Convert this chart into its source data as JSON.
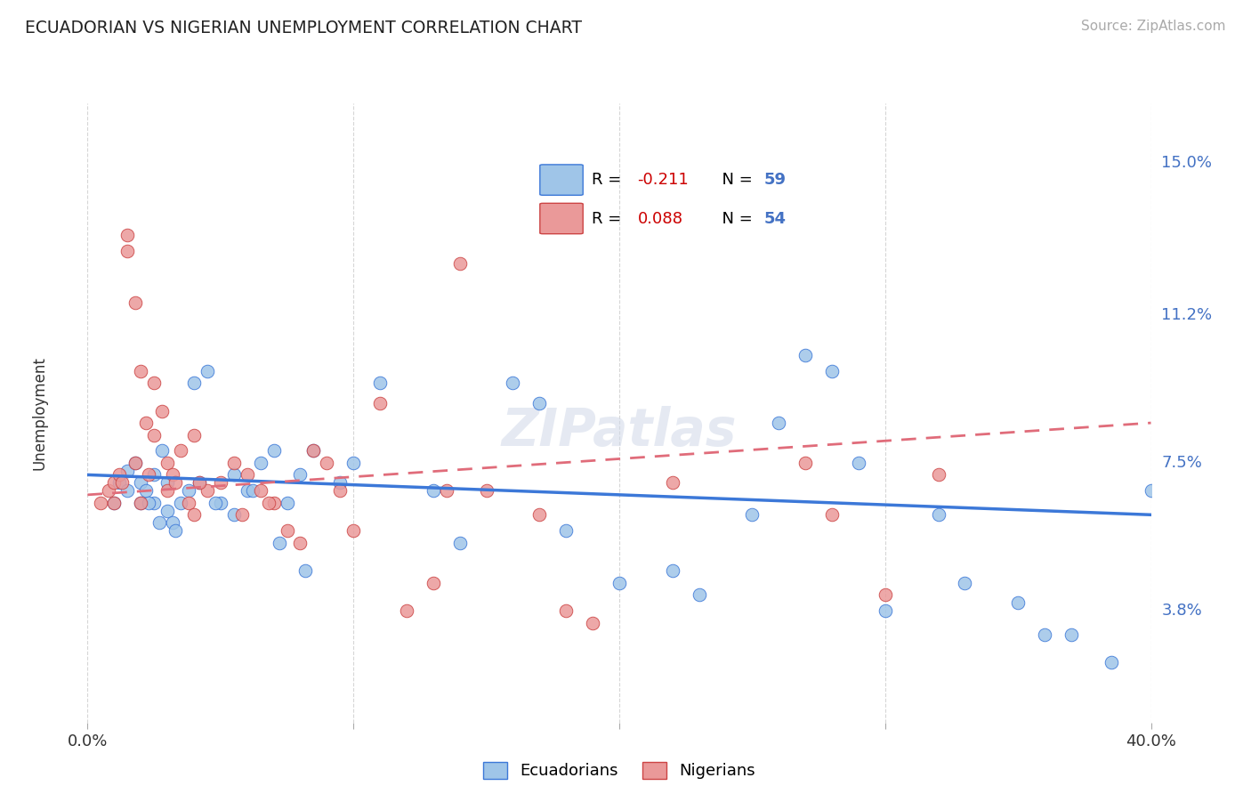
{
  "title": "ECUADORIAN VS NIGERIAN UNEMPLOYMENT CORRELATION CHART",
  "source": "Source: ZipAtlas.com",
  "ylabel": "Unemployment",
  "yticks": [
    3.8,
    7.5,
    11.2,
    15.0
  ],
  "ytick_labels": [
    "3.8%",
    "7.5%",
    "11.2%",
    "15.0%"
  ],
  "xmin": 0.0,
  "xmax": 40.0,
  "ymin": 1.0,
  "ymax": 16.5,
  "blue_color": "#9fc5e8",
  "pink_color": "#ea9999",
  "blue_line_color": "#3c78d8",
  "pink_line_color": "#e06c7a",
  "blue_line_y0": 7.2,
  "blue_line_y1": 6.2,
  "pink_line_y0": 6.7,
  "pink_line_y1": 8.5,
  "ecuadorians_label": "Ecuadorians",
  "nigerians_label": "Nigerians",
  "background_color": "#ffffff",
  "grid_color": "#cccccc",
  "blue_scatter_x": [
    1.0,
    1.2,
    1.5,
    1.5,
    1.8,
    2.0,
    2.0,
    2.2,
    2.5,
    2.5,
    2.8,
    3.0,
    3.0,
    3.2,
    3.5,
    3.8,
    4.0,
    4.5,
    5.0,
    5.5,
    6.0,
    6.5,
    7.0,
    7.5,
    8.0,
    8.5,
    9.5,
    10.0,
    11.0,
    13.0,
    14.0,
    16.0,
    17.0,
    18.0,
    20.0,
    22.0,
    23.0,
    25.0,
    26.0,
    27.0,
    28.0,
    29.0,
    30.0,
    32.0,
    33.0,
    35.0,
    36.0,
    37.0,
    38.5,
    40.0,
    2.3,
    2.7,
    3.3,
    4.2,
    4.8,
    5.5,
    6.2,
    7.2,
    8.2
  ],
  "blue_scatter_y": [
    6.5,
    7.0,
    7.3,
    6.8,
    7.5,
    6.5,
    7.0,
    6.8,
    6.5,
    7.2,
    7.8,
    7.0,
    6.3,
    6.0,
    6.5,
    6.8,
    9.5,
    9.8,
    6.5,
    6.2,
    6.8,
    7.5,
    7.8,
    6.5,
    7.2,
    7.8,
    7.0,
    7.5,
    9.5,
    6.8,
    5.5,
    9.5,
    9.0,
    5.8,
    4.5,
    4.8,
    4.2,
    6.2,
    8.5,
    10.2,
    9.8,
    7.5,
    3.8,
    6.2,
    4.5,
    4.0,
    3.2,
    3.2,
    2.5,
    6.8,
    6.5,
    6.0,
    5.8,
    7.0,
    6.5,
    7.2,
    6.8,
    5.5,
    4.8
  ],
  "pink_scatter_x": [
    0.5,
    0.8,
    1.0,
    1.0,
    1.2,
    1.5,
    1.5,
    1.8,
    2.0,
    2.0,
    2.2,
    2.5,
    2.5,
    2.8,
    3.0,
    3.0,
    3.2,
    3.5,
    3.8,
    4.0,
    4.0,
    4.5,
    5.0,
    5.5,
    5.8,
    6.0,
    6.5,
    7.0,
    7.5,
    8.0,
    8.5,
    9.5,
    10.0,
    11.0,
    12.0,
    13.0,
    13.5,
    14.0,
    15.0,
    17.0,
    18.0,
    19.0,
    22.0,
    27.0,
    28.0,
    30.0,
    32.0,
    1.3,
    1.8,
    2.3,
    3.3,
    4.2,
    6.8,
    9.0
  ],
  "pink_scatter_y": [
    6.5,
    6.8,
    7.0,
    6.5,
    7.2,
    12.8,
    13.2,
    11.5,
    9.8,
    6.5,
    8.5,
    8.2,
    9.5,
    8.8,
    7.5,
    6.8,
    7.2,
    7.8,
    6.5,
    8.2,
    6.2,
    6.8,
    7.0,
    7.5,
    6.2,
    7.2,
    6.8,
    6.5,
    5.8,
    5.5,
    7.8,
    6.8,
    5.8,
    9.0,
    3.8,
    4.5,
    6.8,
    12.5,
    6.8,
    6.2,
    3.8,
    3.5,
    7.0,
    7.5,
    6.2,
    4.2,
    7.2,
    7.0,
    7.5,
    7.2,
    7.0,
    7.0,
    6.5,
    7.5
  ]
}
